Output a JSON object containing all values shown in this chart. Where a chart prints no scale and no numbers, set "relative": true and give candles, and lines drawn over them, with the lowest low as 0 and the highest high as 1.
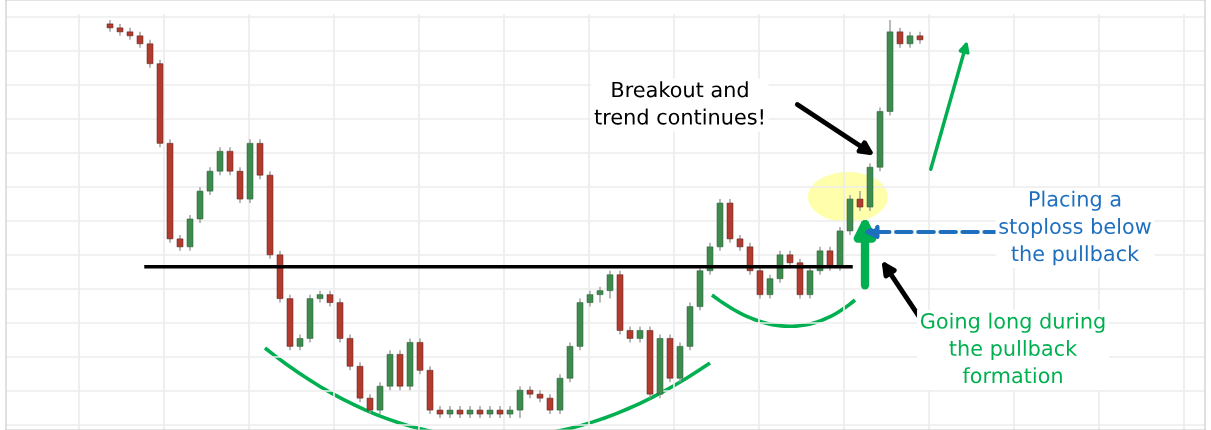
{
  "chart_data": {
    "type": "candlestick",
    "relative": true,
    "categories": [
      null,
      null,
      null,
      null,
      null,
      null,
      null,
      null,
      null,
      null,
      null,
      null,
      null,
      null,
      null,
      null,
      null,
      null,
      null,
      null,
      null,
      null,
      null,
      null,
      null,
      null,
      null,
      null,
      null,
      null,
      null,
      null,
      null,
      null,
      null,
      null,
      null,
      null,
      null,
      null,
      null,
      null,
      null,
      null,
      null,
      null,
      null,
      null,
      null,
      null,
      null,
      null,
      null,
      null,
      null,
      null,
      null,
      null,
      null,
      null,
      null,
      null,
      null,
      null,
      null,
      null,
      null,
      null,
      null,
      null,
      null,
      null,
      null,
      null,
      null,
      null,
      null,
      null,
      null,
      null,
      null,
      null
    ],
    "ohlc": [
      [
        0.99,
        1.0,
        0.97,
        0.98
      ],
      [
        0.98,
        0.99,
        0.96,
        0.97
      ],
      [
        0.97,
        0.98,
        0.95,
        0.96
      ],
      [
        0.96,
        0.97,
        0.93,
        0.94
      ],
      [
        0.94,
        0.95,
        0.88,
        0.89
      ],
      [
        0.89,
        0.9,
        0.68,
        0.69
      ],
      [
        0.69,
        0.7,
        0.44,
        0.45
      ],
      [
        0.45,
        0.46,
        0.42,
        0.43
      ],
      [
        0.43,
        0.51,
        0.42,
        0.5
      ],
      [
        0.5,
        0.58,
        0.49,
        0.57
      ],
      [
        0.57,
        0.63,
        0.56,
        0.62
      ],
      [
        0.62,
        0.68,
        0.61,
        0.67
      ],
      [
        0.67,
        0.68,
        0.61,
        0.62
      ],
      [
        0.62,
        0.63,
        0.54,
        0.55
      ],
      [
        0.55,
        0.7,
        0.54,
        0.69
      ],
      [
        0.69,
        0.7,
        0.6,
        0.61
      ],
      [
        0.61,
        0.62,
        0.4,
        0.41
      ],
      [
        0.41,
        0.42,
        0.29,
        0.3
      ],
      [
        0.3,
        0.31,
        0.17,
        0.18
      ],
      [
        0.18,
        0.21,
        0.17,
        0.2
      ],
      [
        0.2,
        0.31,
        0.19,
        0.3
      ],
      [
        0.3,
        0.32,
        0.29,
        0.31
      ],
      [
        0.31,
        0.32,
        0.28,
        0.29
      ],
      [
        0.29,
        0.3,
        0.19,
        0.2
      ],
      [
        0.2,
        0.21,
        0.12,
        0.13
      ],
      [
        0.13,
        0.14,
        0.04,
        0.05
      ],
      [
        0.05,
        0.06,
        0.01,
        0.02
      ],
      [
        0.02,
        0.09,
        0.01,
        0.08
      ],
      [
        0.08,
        0.17,
        0.07,
        0.16
      ],
      [
        0.16,
        0.17,
        0.07,
        0.08
      ],
      [
        0.08,
        0.2,
        0.07,
        0.19
      ],
      [
        0.19,
        0.2,
        0.11,
        0.12
      ],
      [
        0.12,
        0.13,
        0.01,
        0.02
      ],
      [
        0.02,
        0.03,
        0.0,
        0.01
      ],
      [
        0.01,
        0.03,
        0.0,
        0.02
      ],
      [
        0.02,
        0.03,
        0.0,
        0.01
      ],
      [
        0.01,
        0.03,
        0.0,
        0.02
      ],
      [
        0.02,
        0.03,
        0.0,
        0.01
      ],
      [
        0.01,
        0.03,
        0.0,
        0.02
      ],
      [
        0.02,
        0.03,
        0.0,
        0.01
      ],
      [
        0.01,
        0.03,
        0.0,
        0.02
      ],
      [
        0.02,
        0.08,
        0.0,
        0.07
      ],
      [
        0.07,
        0.08,
        0.05,
        0.06
      ],
      [
        0.06,
        0.07,
        0.04,
        0.05
      ],
      [
        0.05,
        0.06,
        0.01,
        0.02
      ],
      [
        0.02,
        0.11,
        0.01,
        0.1
      ],
      [
        0.1,
        0.19,
        0.09,
        0.18
      ],
      [
        0.18,
        0.3,
        0.17,
        0.29
      ],
      [
        0.29,
        0.32,
        0.28,
        0.31
      ],
      [
        0.31,
        0.33,
        0.29,
        0.32
      ],
      [
        0.32,
        0.37,
        0.3,
        0.36
      ],
      [
        0.36,
        0.37,
        0.21,
        0.22
      ],
      [
        0.22,
        0.23,
        0.19,
        0.2
      ],
      [
        0.2,
        0.23,
        0.19,
        0.22
      ],
      [
        0.22,
        0.23,
        0.05,
        0.06
      ],
      [
        0.06,
        0.21,
        0.05,
        0.2
      ],
      [
        0.2,
        0.21,
        0.09,
        0.1
      ],
      [
        0.1,
        0.19,
        0.09,
        0.18
      ],
      [
        0.18,
        0.29,
        0.17,
        0.28
      ],
      [
        0.28,
        0.38,
        0.27,
        0.37
      ],
      [
        0.37,
        0.44,
        0.36,
        0.43
      ],
      [
        0.43,
        0.55,
        0.42,
        0.54
      ],
      [
        0.54,
        0.55,
        0.44,
        0.45
      ],
      [
        0.45,
        0.46,
        0.42,
        0.43
      ],
      [
        0.43,
        0.44,
        0.36,
        0.37
      ],
      [
        0.37,
        0.38,
        0.3,
        0.31
      ],
      [
        0.31,
        0.36,
        0.3,
        0.35
      ],
      [
        0.35,
        0.42,
        0.34,
        0.41
      ],
      [
        0.41,
        0.42,
        0.38,
        0.39
      ],
      [
        0.39,
        0.4,
        0.3,
        0.31
      ],
      [
        0.31,
        0.38,
        0.3,
        0.37
      ],
      [
        0.37,
        0.43,
        0.36,
        0.42
      ],
      [
        0.42,
        0.43,
        0.37,
        0.38
      ],
      [
        0.38,
        0.48,
        0.37,
        0.47
      ],
      [
        0.47,
        0.56,
        0.46,
        0.55
      ],
      [
        0.55,
        0.57,
        0.52,
        0.53
      ],
      [
        0.53,
        0.64,
        0.52,
        0.63
      ],
      [
        0.63,
        0.78,
        0.62,
        0.77
      ],
      [
        0.77,
        1.0,
        0.76,
        0.97
      ],
      [
        0.97,
        0.98,
        0.93,
        0.94
      ],
      [
        0.94,
        0.97,
        0.93,
        0.96
      ],
      [
        0.96,
        0.97,
        0.94,
        0.95
      ]
    ],
    "grid": true,
    "ref_lines": [
      {
        "axis": "y",
        "value": 0.38,
        "color": "#000000"
      }
    ],
    "annotations": [
      "Breakout and\ntrend continues!",
      "Placing a\nstoploss below\nthe pullback",
      "Going long during\nthe pullback\nformation"
    ]
  }
}
